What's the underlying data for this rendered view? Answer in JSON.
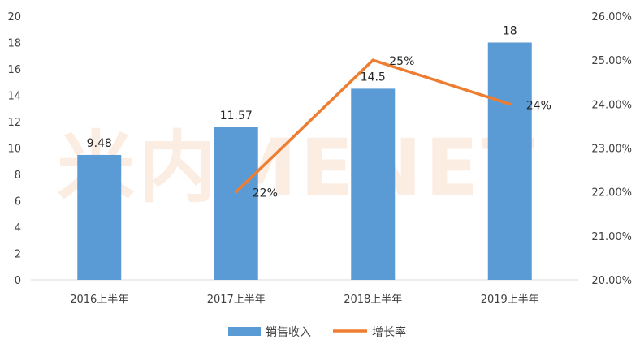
{
  "chart_data": {
    "type": "bar",
    "categories": [
      "2016上半年",
      "2017上半年",
      "2018上半年",
      "2019上半年"
    ],
    "series": [
      {
        "name": "销售收入",
        "type": "bar",
        "axis": "left",
        "color": "#5b9bd5",
        "values": [
          9.48,
          11.57,
          14.5,
          18
        ],
        "labels": [
          "9.48",
          "11.57",
          "14.5",
          "18"
        ]
      },
      {
        "name": "增长率",
        "type": "line",
        "axis": "right",
        "color": "#ed7d31",
        "values": [
          null,
          22,
          25,
          24
        ],
        "labels": [
          "",
          "22%",
          "25%",
          "24%"
        ]
      }
    ],
    "y_left": {
      "min": 0,
      "max": 20,
      "step": 2,
      "ticks": [
        "0",
        "2",
        "4",
        "6",
        "8",
        "10",
        "12",
        "14",
        "16",
        "18",
        "20"
      ]
    },
    "y_right": {
      "min": 20,
      "max": 26,
      "step": 1,
      "ticks": [
        "20.00%",
        "21.00%",
        "22.00%",
        "23.00%",
        "24.00%",
        "25.00%",
        "26.00%"
      ]
    },
    "grid": false,
    "legend": "bottom",
    "watermark": "米内MENET"
  }
}
